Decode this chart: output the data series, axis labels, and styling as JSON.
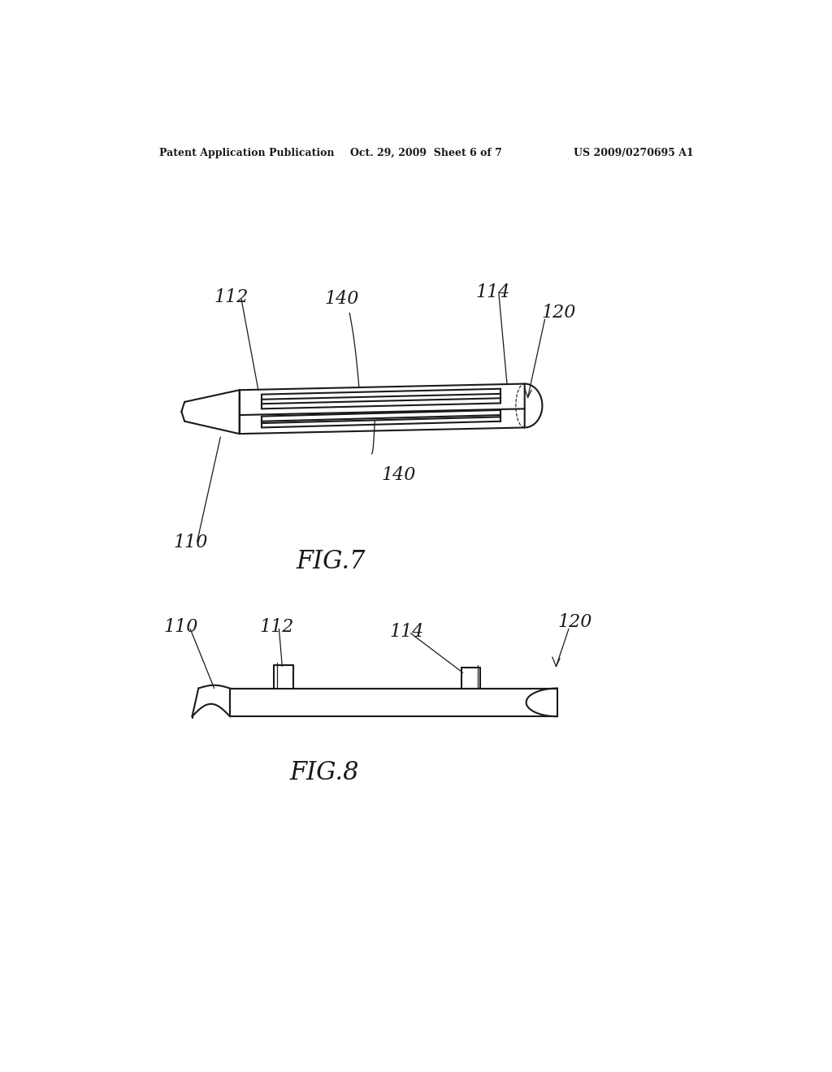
{
  "background_color": "#ffffff",
  "line_color": "#1a1a1a",
  "header_left": "Patent Application Publication",
  "header_center": "Oct. 29, 2009  Sheet 6 of 7",
  "header_right": "US 2009/0270695 A1",
  "fig7_label": "FIG.7",
  "fig8_label": "FIG.8",
  "font_size_header": 9,
  "font_size_label": 16,
  "font_size_fig": 22
}
